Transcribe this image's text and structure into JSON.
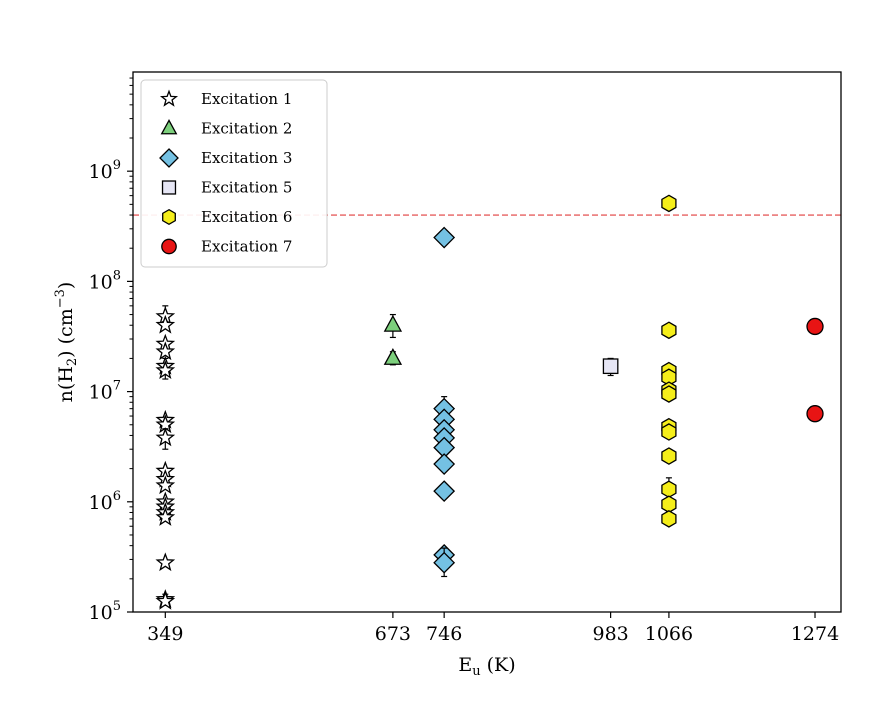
{
  "chart_data": {
    "type": "scatter",
    "title": "",
    "xlabel": "E",
    "xlabel_sub": "u",
    "xlabel_unit": " (K)",
    "ylabel_parts": {
      "a": "n(H",
      "sub": "2",
      "b": ") (cm",
      "sup": "−3",
      "c": ")"
    },
    "xlim": [
      303,
      1311
    ],
    "ylim_log10": [
      5.0,
      9.9
    ],
    "x_ticks": [
      349,
      673,
      746,
      983,
      1066,
      1274
    ],
    "x_tick_labels": [
      "349",
      "673",
      "746",
      "983",
      "1066",
      "1274"
    ],
    "y_ticks": [
      5,
      6,
      7,
      8,
      9
    ],
    "y_tick_base": "10",
    "y_tick_exponents": [
      "5",
      "6",
      "7",
      "8",
      "9"
    ],
    "threshold_line": {
      "y": 400000000,
      "color": "#e03c3c",
      "style": "dashed"
    },
    "legend_position": "upper-left",
    "series": [
      {
        "name": "Excitation 1",
        "marker": "star",
        "color": "#ffffff",
        "edge": "#000000",
        "points": [
          {
            "x": 349,
            "y": 48000000,
            "err": [
              38000000,
              60000000
            ]
          },
          {
            "x": 349,
            "y": 40000000
          },
          {
            "x": 349,
            "y": 27000000
          },
          {
            "x": 349,
            "y": 23000000
          },
          {
            "x": 349,
            "y": 17000000,
            "err": [
              13000000,
              20000000
            ]
          },
          {
            "x": 349,
            "y": 15500000
          },
          {
            "x": 349,
            "y": 5500000
          },
          {
            "x": 349,
            "y": 5000000
          },
          {
            "x": 349,
            "y": 3800000,
            "err": [
              3000000,
              4600000
            ]
          },
          {
            "x": 349,
            "y": 1900000
          },
          {
            "x": 349,
            "y": 1600000
          },
          {
            "x": 349,
            "y": 1400000
          },
          {
            "x": 349,
            "y": 1000000
          },
          {
            "x": 349,
            "y": 900000
          },
          {
            "x": 349,
            "y": 800000
          },
          {
            "x": 349,
            "y": 720000
          },
          {
            "x": 349,
            "y": 280000
          },
          {
            "x": 349,
            "y": 130000,
            "err": [
              115000,
              145000
            ]
          },
          {
            "x": 349,
            "y": 125000
          }
        ]
      },
      {
        "name": "Excitation 2",
        "marker": "triangle",
        "color": "#7ccf7c",
        "edge": "#000000",
        "points": [
          {
            "x": 673,
            "y": 40000000,
            "err": [
              31000000,
              50000000
            ]
          },
          {
            "x": 673,
            "y": 20000000,
            "err": [
              17500000,
              23000000
            ]
          }
        ]
      },
      {
        "name": "Excitation 3",
        "marker": "diamond",
        "color": "#74c1e3",
        "edge": "#000000",
        "points": [
          {
            "x": 746,
            "y": 250000000
          },
          {
            "x": 746,
            "y": 7000000,
            "err": [
              5500000,
              9000000
            ]
          },
          {
            "x": 746,
            "y": 5600000
          },
          {
            "x": 746,
            "y": 4500000
          },
          {
            "x": 746,
            "y": 3800000
          },
          {
            "x": 746,
            "y": 3100000
          },
          {
            "x": 746,
            "y": 2200000
          },
          {
            "x": 746,
            "y": 1250000
          },
          {
            "x": 746,
            "y": 330000
          },
          {
            "x": 746,
            "y": 280000,
            "err": [
              210000,
              380000
            ]
          }
        ]
      },
      {
        "name": "Excitation 5",
        "marker": "square",
        "color": "#e6e6f5",
        "edge": "#000000",
        "points": [
          {
            "x": 983,
            "y": 17000000,
            "err": [
              14000000,
              20000000
            ]
          }
        ]
      },
      {
        "name": "Excitation 6",
        "marker": "hexagon",
        "color": "#f5ee1a",
        "edge": "#000000",
        "points": [
          {
            "x": 1066,
            "y": 510000000
          },
          {
            "x": 1066,
            "y": 36000000
          },
          {
            "x": 1066,
            "y": 15500000
          },
          {
            "x": 1066,
            "y": 13500000
          },
          {
            "x": 1066,
            "y": 10300000
          },
          {
            "x": 1066,
            "y": 9500000
          },
          {
            "x": 1066,
            "y": 4800000
          },
          {
            "x": 1066,
            "y": 4300000
          },
          {
            "x": 1066,
            "y": 2600000
          },
          {
            "x": 1066,
            "y": 1300000,
            "err": [
              1050000,
              1650000
            ]
          },
          {
            "x": 1066,
            "y": 950000
          },
          {
            "x": 1066,
            "y": 700000
          }
        ]
      },
      {
        "name": "Excitation 7",
        "marker": "circle",
        "color": "#e81414",
        "edge": "#000000",
        "points": [
          {
            "x": 1274,
            "y": 39000000,
            "err": [
              36000000,
              42000000
            ]
          },
          {
            "x": 1274,
            "y": 6300000,
            "err": [
              5800000,
              6800000
            ]
          }
        ]
      }
    ]
  }
}
